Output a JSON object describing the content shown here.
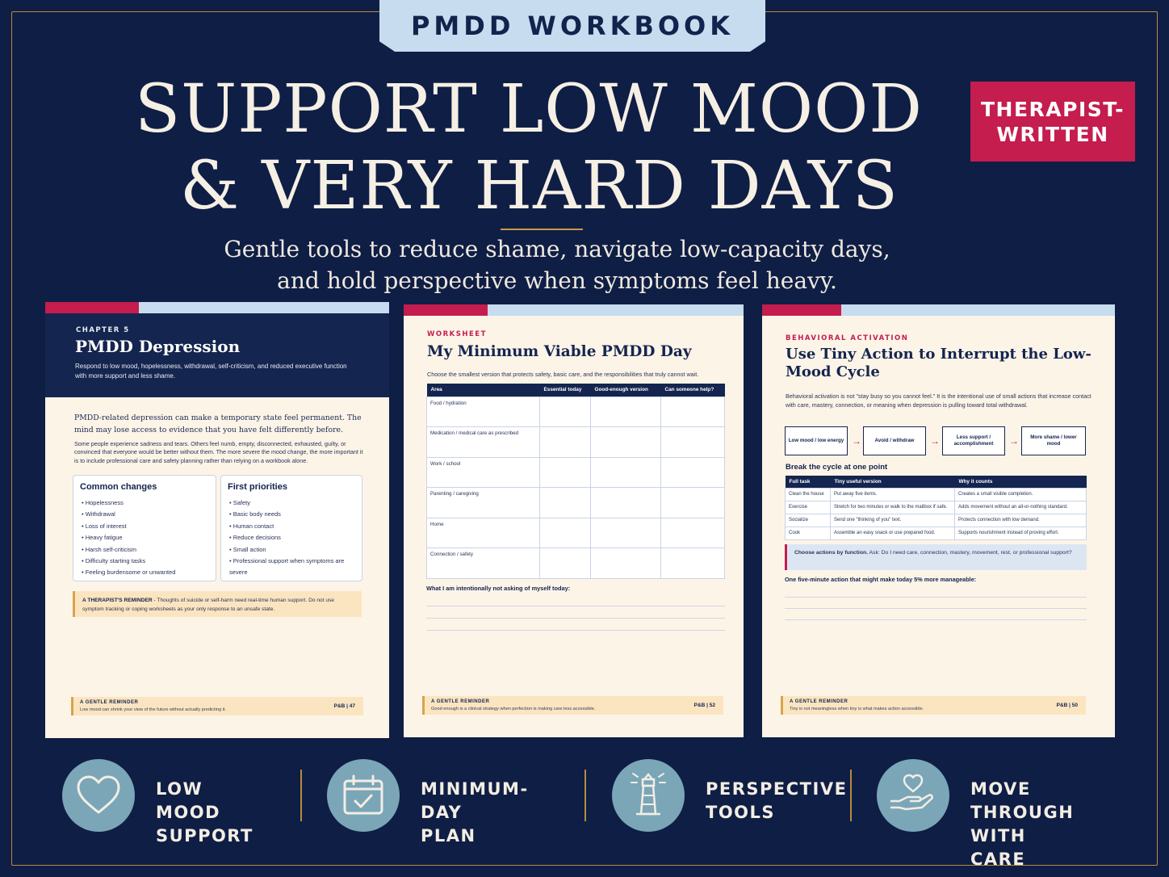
{
  "header": {
    "tab": "PMDD WORKBOOK",
    "headline_line1": "SUPPORT LOW MOOD",
    "headline_line2": "& VERY HARD DAYS",
    "badge": "THERAPIST-\nWRITTEN",
    "subtitle_line1": "Gentle tools to reduce shame, navigate low-capacity days,",
    "subtitle_line2": "and hold perspective when symptoms feel heavy."
  },
  "page1": {
    "kicker": "CHAPTER 5",
    "title": "PMDD Depression",
    "intro": "Respond to low mood, hopelessness, withdrawal, self-criticism, and reduced executive function with more support and less shame.",
    "lead": "PMDD-related depression can make a temporary state feel permanent. The mind may lose access to evidence that you have felt differently before.",
    "body": "Some people experience sadness and tears. Others feel numb, empty, disconnected, exhausted, guilty, or convinced that everyone would be better without them. The more severe the mood change, the more important it is to include professional care and safety planning rather than relying on a workbook alone.",
    "box1_title": "Common changes",
    "box1_items": [
      "• Hopelessness",
      "• Withdrawal",
      "• Loss of interest",
      "• Heavy fatigue",
      "• Harsh self-criticism",
      "• Difficulty starting tasks",
      "• Feeling burdensome or unwanted"
    ],
    "box2_title": "First priorities",
    "box2_items": [
      "• Safety",
      "• Basic body needs",
      "• Human contact",
      "• Reduce decisions",
      "• Small action",
      "• Professional support when symptoms are severe"
    ],
    "note_label": "A THERAPIST'S REMINDER",
    "note_text": " - Thoughts of suicide or self-harm need real-time human support. Do not use symptom tracking or coping worksheets as your only response to an unsafe state.",
    "footer_label": "A GENTLE REMINDER",
    "footer_text": "Low mood can shrink your view of the future without actually predicting it.",
    "page_number": "P&B | 47"
  },
  "page2": {
    "kicker": "WORKSHEET",
    "title": "My Minimum Viable PMDD Day",
    "intro": "Choose the smallest version that protects safety, basic care, and the responsibilities that truly cannot wait.",
    "columns": [
      "Area",
      "Essential today",
      "Good-enough version",
      "Can someone help?"
    ],
    "rows": [
      "Food / hydration",
      "Medication / medical care as prescribed",
      "Work / school",
      "Parenting / caregiving",
      "Home",
      "Connection / safety"
    ],
    "prompt": "What I am intentionally not asking of myself today:",
    "footer_label": "A GENTLE REMINDER",
    "footer_text": "Good enough is a clinical strategy when perfection is making care less accessible.",
    "page_number": "P&B | 52"
  },
  "page3": {
    "kicker": "BEHAVIORAL ACTIVATION",
    "title": "Use Tiny Action to Interrupt the Low-Mood Cycle",
    "intro": "Behavioral activation is not \"stay busy so you cannot feel.\" It is the intentional use of small actions that increase contact with care, mastery, connection, or meaning when depression is pulling toward total withdrawal.",
    "flow": [
      "Low mood / low energy",
      "Avoid / withdraw",
      "Less support / accomplishment",
      "More shame / lower mood"
    ],
    "arrow": "→",
    "section": "Break the cycle at one point",
    "columns": [
      "Full task",
      "Tiny useful version",
      "Why it counts"
    ],
    "rows": [
      [
        "Clean the house",
        "Put away five items.",
        "Creates a small visible completion."
      ],
      [
        "Exercise",
        "Stretch for two minutes or walk to the mailbox if safe.",
        "Adds movement without an all-or-nothing standard."
      ],
      [
        "Socialize",
        "Send one \"thinking of you\" text.",
        "Protects connection with low demand."
      ],
      [
        "Cook",
        "Assemble an easy snack or use prepared food.",
        "Supports nourishment instead of proving effort."
      ]
    ],
    "callout_label": "Choose actions by function.",
    "callout_text": " Ask: Do I need care, connection, mastery, movement, rest, or professional support?",
    "prompt": "One five-minute action that might make today 5% more manageable:",
    "footer_label": "A GENTLE REMINDER",
    "footer_text": "Tiny is not meaningless when tiny is what makes action accessible.",
    "page_number": "P&B | 50"
  },
  "features": [
    {
      "icon": "heart-icon",
      "label": "LOW MOOD\nSUPPORT"
    },
    {
      "icon": "calendar-check-icon",
      "label": "MINIMUM-DAY\nPLAN"
    },
    {
      "icon": "lighthouse-icon",
      "label": "PERSPECTIVE\nTOOLS"
    },
    {
      "icon": "hand-heart-icon",
      "label": "MOVE THROUGH\nWITH CARE"
    }
  ],
  "colors": {
    "navy": "#0f1e45",
    "accent": "#c41d4e",
    "gold": "#b98a3e",
    "cream": "#fdf4e8",
    "icon_circle": "#7aa6b8"
  }
}
